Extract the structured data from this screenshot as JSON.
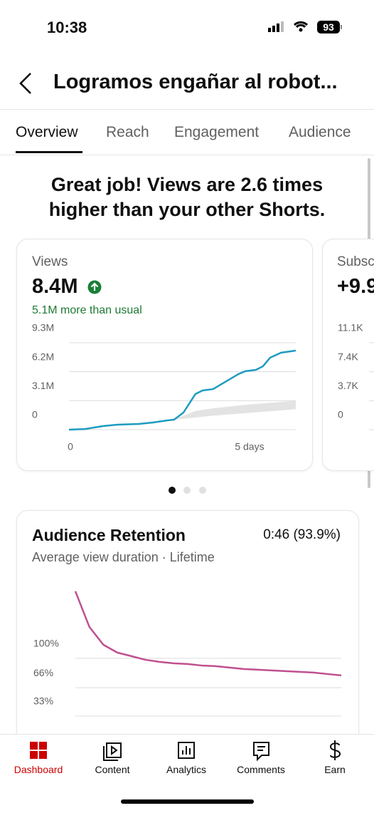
{
  "status_bar": {
    "time": "10:38",
    "battery": "93"
  },
  "header": {
    "title": "Logramos engañar al robot..."
  },
  "tabs": [
    "Overview",
    "Reach",
    "Engagement",
    "Audience"
  ],
  "headline": "Great job! Views are 2.6 times higher than your other Shorts.",
  "chart_data": [
    {
      "type": "line",
      "title": "Views",
      "headline_value": "8.4M",
      "subtitle": "5.1M more than usual",
      "x": [
        0,
        0.45,
        0.94,
        1.34,
        1.93,
        2.32,
        2.72,
        2.91,
        3.17,
        3.5,
        3.7,
        3.99,
        4.29,
        4.69,
        4.88,
        5.18,
        5.37,
        5.57,
        5.87,
        6.28
      ],
      "series": [
        {
          "color": "#1e9bc0",
          "values": [
            0,
            70000,
            380000,
            530000,
            610000,
            760000,
            990000,
            1070000,
            1830000,
            3810000,
            4190000,
            4340000,
            5030000,
            5940000,
            6250000,
            6400000,
            6780000,
            7700000,
            8230000,
            8460000
          ]
        }
      ],
      "band": {
        "color": "#e3e3e3",
        "x": [
          2.91,
          3.5,
          4.0,
          4.5,
          5.0,
          5.5,
          6.0,
          6.28
        ],
        "low": [
          1070000,
          1300000,
          1500000,
          1650000,
          1800000,
          1950000,
          2100000,
          2200000
        ],
        "high": [
          1100000,
          2000000,
          2300000,
          2500000,
          2700000,
          2850000,
          3000000,
          3100000
        ]
      },
      "xlim": [
        0,
        6.28
      ],
      "xticks": [
        0,
        {
          "value": 5,
          "label": "5 days"
        }
      ],
      "ylim": [
        0,
        9300000
      ],
      "yticks": [
        {
          "value": 9300000,
          "label": "9.3M"
        },
        {
          "value": 6200000,
          "label": "6.2M"
        },
        {
          "value": 3100000,
          "label": "3.1M"
        },
        0
      ],
      "grid": true
    },
    {
      "type": "line",
      "title": "Subsc",
      "headline_value": "+9.9",
      "ylim": [
        0,
        11100
      ],
      "yticks": [
        {
          "value": 11100,
          "label": "11.1K"
        },
        {
          "value": 7400,
          "label": "7.4K"
        },
        {
          "value": 3700,
          "label": "3.7K"
        },
        0
      ],
      "grid": true
    },
    {
      "type": "line",
      "title": "Audience Retention",
      "summary": "0:46 (93.9%)",
      "subtitle": "Average view duration · Lifetime",
      "color": "#c0508f",
      "values": [
        177.7,
        136.4,
        115.7,
        106.6,
        102.5,
        98.3,
        95.9,
        94.2,
        93.4,
        91.7,
        90.9,
        89.3,
        87.6,
        86.8,
        86.0,
        85.1,
        84.3,
        83.5,
        81.8,
        80.2
      ],
      "ylim": [
        0,
        180
      ],
      "yticks": [
        {
          "value": 100,
          "label": "100%"
        },
        {
          "value": 66,
          "label": "66%"
        },
        {
          "value": 33,
          "label": "33%"
        }
      ],
      "grid": true
    }
  ],
  "nav": [
    "Dashboard",
    "Content",
    "Analytics",
    "Comments",
    "Earn"
  ]
}
